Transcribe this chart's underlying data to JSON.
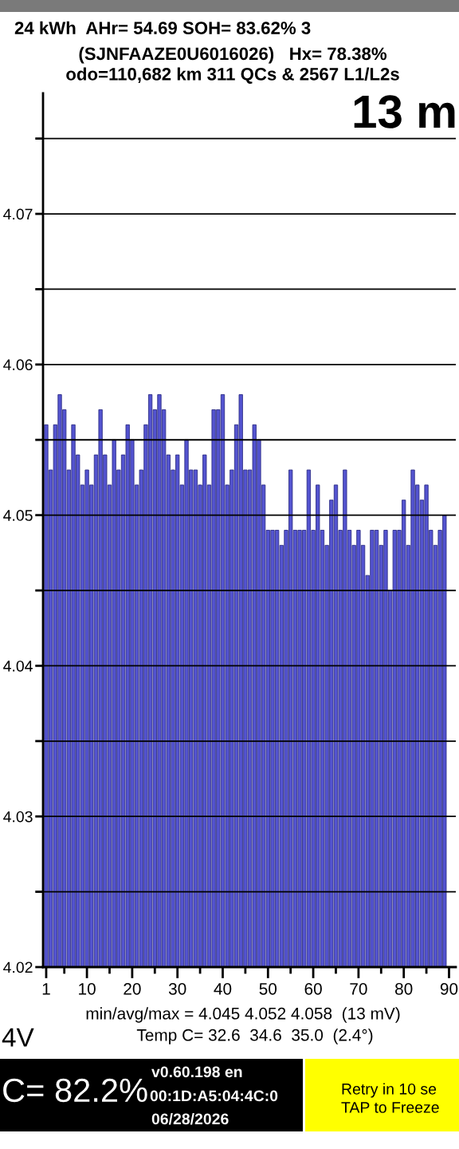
{
  "chart_data": {
    "type": "bar",
    "title": "24 kWh  AHr= 54.69 SOH= 83.62% 3",
    "subtitle": "(SJNFAAZE0U6016026)   Hx= 78.38%\nodo=110,682 km 311 QCs & 2567 L1/L2s",
    "x": [
      1,
      2,
      3,
      4,
      5,
      6,
      7,
      8,
      9,
      10,
      11,
      12,
      13,
      14,
      15,
      16,
      17,
      18,
      19,
      20,
      21,
      22,
      23,
      24,
      25,
      26,
      27,
      28,
      29,
      30,
      31,
      32,
      33,
      34,
      35,
      36,
      37,
      38,
      39,
      40,
      41,
      42,
      43,
      44,
      45,
      46,
      47,
      48,
      49,
      50,
      51,
      52,
      53,
      54,
      55,
      56,
      57,
      58,
      59,
      60,
      61,
      62,
      63,
      64,
      65,
      66,
      67,
      68,
      69,
      70,
      71,
      72,
      73,
      74,
      75,
      76,
      77,
      78,
      79,
      80,
      81,
      82,
      83,
      84,
      85,
      86,
      87,
      88,
      89
    ],
    "values": [
      4.056,
      4.053,
      4.056,
      4.058,
      4.057,
      4.053,
      4.056,
      4.054,
      4.052,
      4.053,
      4.052,
      4.054,
      4.057,
      4.054,
      4.052,
      4.055,
      4.053,
      4.054,
      4.056,
      4.055,
      4.052,
      4.053,
      4.056,
      4.058,
      4.057,
      4.058,
      4.057,
      4.054,
      4.053,
      4.054,
      4.052,
      4.055,
      4.053,
      4.053,
      4.052,
      4.054,
      4.052,
      4.057,
      4.057,
      4.058,
      4.052,
      4.053,
      4.056,
      4.058,
      4.053,
      4.053,
      4.056,
      4.055,
      4.052,
      4.049,
      4.049,
      4.049,
      4.048,
      4.049,
      4.053,
      4.049,
      4.049,
      4.049,
      4.053,
      4.049,
      4.052,
      4.049,
      4.048,
      4.051,
      4.052,
      4.049,
      4.053,
      4.049,
      4.048,
      4.049,
      4.048,
      4.046,
      4.049,
      4.049,
      4.048,
      4.049,
      4.045,
      4.049,
      4.049,
      4.051,
      4.048,
      4.053,
      4.052,
      4.051,
      4.052,
      4.049,
      4.048,
      4.049,
      4.05
    ],
    "color": "#5454d0",
    "xlim": [
      0.3,
      91.5
    ],
    "xticks": [
      1,
      {
        "value": 5,
        "label": null
      },
      10,
      {
        "value": 15,
        "label": null
      },
      20,
      {
        "value": 25,
        "label": null
      },
      30,
      {
        "value": 35,
        "label": null
      },
      40,
      {
        "value": 45,
        "label": null
      },
      50,
      {
        "value": 55,
        "label": null
      },
      60,
      {
        "value": 65,
        "label": null
      },
      70,
      {
        "value": 75,
        "label": null
      },
      80,
      {
        "value": 85,
        "label": null
      },
      90
    ],
    "ylim": [
      4.02,
      4.078
    ],
    "yticks": [
      4.02,
      {
        "value": 4.025,
        "label": null
      },
      4.03,
      {
        "value": 4.035,
        "label": null
      },
      4.04,
      {
        "value": 4.045,
        "label": null
      },
      4.05,
      {
        "value": 4.055,
        "label": null
      },
      4.06,
      {
        "value": 4.065,
        "label": null
      },
      4.07,
      {
        "value": 4.075,
        "label": null
      }
    ],
    "grid": "y",
    "annotations": [
      "13 m",
      "min/avg/max = 4.045 4.052 4.058  (13 mV)",
      "Temp C= 32.6  34.6  35.0  (2.4°)",
      "4V",
      "C= 82.2%",
      "v0.60.198 en",
      "00:1D:A5:04:4C:0",
      "06/28/2026",
      "Retry in 10 se\nTAP to Freeze"
    ]
  }
}
